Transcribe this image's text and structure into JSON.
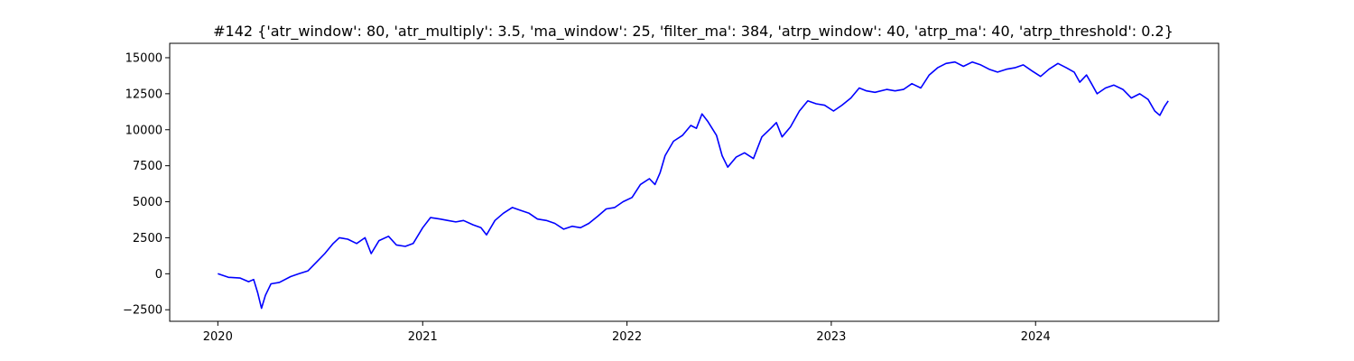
{
  "chart_data": {
    "type": "line",
    "title": "#142 {'atr_window': 80, 'atr_multiply': 3.5, 'ma_window': 25, 'filter_ma': 384, 'atrp_window': 40, 'atrp_ma': 40, 'atrp_threshold': 0.2}",
    "xlabel": "",
    "ylabel": "",
    "x_ticks": [
      "2020",
      "2021",
      "2022",
      "2023",
      "2024"
    ],
    "y_ticks": [
      -2500,
      0,
      2500,
      5000,
      7500,
      10000,
      12500,
      15000
    ],
    "xlim": [
      "2019-10-07",
      "2024-11-23"
    ],
    "ylim": [
      -3300,
      16000
    ],
    "grid": false,
    "series": [
      {
        "color": "#0000ff",
        "points": [
          [
            "2020-01-01",
            0
          ],
          [
            "2020-01-20",
            -250
          ],
          [
            "2020-02-10",
            -300
          ],
          [
            "2020-02-25",
            -550
          ],
          [
            "2020-03-05",
            -400
          ],
          [
            "2020-03-12",
            -1300
          ],
          [
            "2020-03-19",
            -2400
          ],
          [
            "2020-03-26",
            -1500
          ],
          [
            "2020-04-05",
            -700
          ],
          [
            "2020-04-20",
            -600
          ],
          [
            "2020-05-10",
            -200
          ],
          [
            "2020-05-25",
            0
          ],
          [
            "2020-06-10",
            200
          ],
          [
            "2020-06-25",
            800
          ],
          [
            "2020-07-10",
            1400
          ],
          [
            "2020-07-25",
            2100
          ],
          [
            "2020-08-05",
            2500
          ],
          [
            "2020-08-20",
            2400
          ],
          [
            "2020-09-05",
            2100
          ],
          [
            "2020-09-20",
            2500
          ],
          [
            "2020-10-01",
            1400
          ],
          [
            "2020-10-15",
            2300
          ],
          [
            "2020-11-01",
            2600
          ],
          [
            "2020-11-15",
            2000
          ],
          [
            "2020-12-01",
            1900
          ],
          [
            "2020-12-15",
            2100
          ],
          [
            "2021-01-01",
            3200
          ],
          [
            "2021-01-15",
            3900
          ],
          [
            "2021-02-01",
            3800
          ],
          [
            "2021-02-15",
            3700
          ],
          [
            "2021-03-01",
            3600
          ],
          [
            "2021-03-15",
            3700
          ],
          [
            "2021-04-01",
            3400
          ],
          [
            "2021-04-15",
            3200
          ],
          [
            "2021-04-25",
            2700
          ],
          [
            "2021-05-10",
            3700
          ],
          [
            "2021-05-25",
            4200
          ],
          [
            "2021-06-10",
            4600
          ],
          [
            "2021-06-25",
            4400
          ],
          [
            "2021-07-10",
            4200
          ],
          [
            "2021-07-25",
            3800
          ],
          [
            "2021-08-10",
            3700
          ],
          [
            "2021-08-25",
            3500
          ],
          [
            "2021-09-10",
            3100
          ],
          [
            "2021-09-25",
            3300
          ],
          [
            "2021-10-10",
            3200
          ],
          [
            "2021-10-25",
            3500
          ],
          [
            "2021-11-10",
            4000
          ],
          [
            "2021-11-25",
            4500
          ],
          [
            "2021-12-10",
            4600
          ],
          [
            "2021-12-25",
            5000
          ],
          [
            "2022-01-10",
            5300
          ],
          [
            "2022-01-25",
            6200
          ],
          [
            "2022-02-10",
            6600
          ],
          [
            "2022-02-20",
            6200
          ],
          [
            "2022-03-01",
            7000
          ],
          [
            "2022-03-10",
            8200
          ],
          [
            "2022-03-25",
            9200
          ],
          [
            "2022-04-10",
            9600
          ],
          [
            "2022-04-25",
            10300
          ],
          [
            "2022-05-05",
            10100
          ],
          [
            "2022-05-15",
            11100
          ],
          [
            "2022-05-25",
            10600
          ],
          [
            "2022-06-10",
            9600
          ],
          [
            "2022-06-20",
            8200
          ],
          [
            "2022-06-30",
            7400
          ],
          [
            "2022-07-15",
            8100
          ],
          [
            "2022-07-30",
            8400
          ],
          [
            "2022-08-15",
            8000
          ],
          [
            "2022-08-30",
            9500
          ],
          [
            "2022-09-15",
            10100
          ],
          [
            "2022-09-25",
            10500
          ],
          [
            "2022-10-05",
            9500
          ],
          [
            "2022-10-20",
            10200
          ],
          [
            "2022-11-05",
            11300
          ],
          [
            "2022-11-20",
            12000
          ],
          [
            "2022-12-05",
            11800
          ],
          [
            "2022-12-20",
            11700
          ],
          [
            "2023-01-05",
            11300
          ],
          [
            "2023-01-20",
            11700
          ],
          [
            "2023-02-05",
            12200
          ],
          [
            "2023-02-20",
            12900
          ],
          [
            "2023-03-05",
            12700
          ],
          [
            "2023-03-20",
            12600
          ],
          [
            "2023-04-10",
            12800
          ],
          [
            "2023-04-25",
            12700
          ],
          [
            "2023-05-10",
            12800
          ],
          [
            "2023-05-25",
            13200
          ],
          [
            "2023-06-10",
            12900
          ],
          [
            "2023-06-25",
            13800
          ],
          [
            "2023-07-10",
            14300
          ],
          [
            "2023-07-25",
            14600
          ],
          [
            "2023-08-10",
            14700
          ],
          [
            "2023-08-25",
            14400
          ],
          [
            "2023-09-10",
            14700
          ],
          [
            "2023-09-25",
            14500
          ],
          [
            "2023-10-10",
            14200
          ],
          [
            "2023-10-25",
            14000
          ],
          [
            "2023-11-10",
            14200
          ],
          [
            "2023-11-25",
            14300
          ],
          [
            "2023-12-10",
            14500
          ],
          [
            "2023-12-25",
            14100
          ],
          [
            "2024-01-10",
            13700
          ],
          [
            "2024-01-25",
            14200
          ],
          [
            "2024-02-10",
            14600
          ],
          [
            "2024-02-25",
            14300
          ],
          [
            "2024-03-10",
            14000
          ],
          [
            "2024-03-20",
            13300
          ],
          [
            "2024-04-01",
            13800
          ],
          [
            "2024-04-10",
            13200
          ],
          [
            "2024-04-20",
            12500
          ],
          [
            "2024-05-05",
            12900
          ],
          [
            "2024-05-20",
            13100
          ],
          [
            "2024-06-05",
            12800
          ],
          [
            "2024-06-20",
            12200
          ],
          [
            "2024-07-05",
            12500
          ],
          [
            "2024-07-20",
            12100
          ],
          [
            "2024-08-01",
            11300
          ],
          [
            "2024-08-10",
            11000
          ],
          [
            "2024-08-18",
            11600
          ],
          [
            "2024-08-25",
            12000
          ]
        ]
      }
    ]
  }
}
